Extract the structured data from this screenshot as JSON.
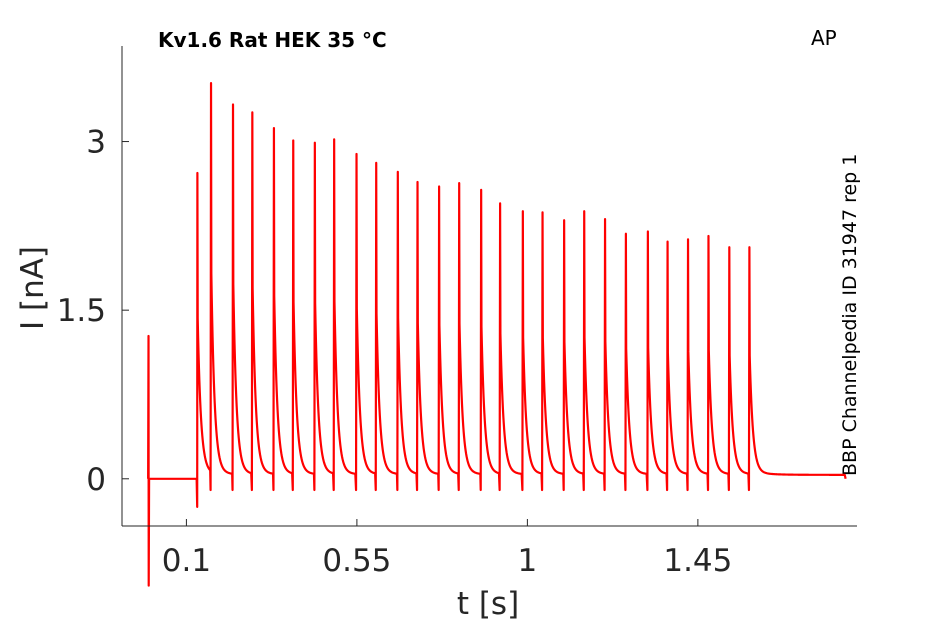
{
  "chart_data": {
    "type": "line",
    "title": "Kv1.6  Rat  HEK  35 °C",
    "protocol_label": "AP",
    "side_label": "BBP Channelpedia ID 31947 rep 1",
    "xlabel": "t [s]",
    "ylabel": "I [nA]",
    "xlim": [
      -0.07,
      1.87
    ],
    "ylim": [
      -0.42,
      3.85
    ],
    "x_ticks": [
      0.1,
      0.55,
      1,
      1.45
    ],
    "x_tick_labels": [
      "0.1",
      "0.55",
      "1",
      "1.45"
    ],
    "y_ticks": [
      0,
      1.5,
      3
    ],
    "y_tick_labels": [
      "0",
      "1.5",
      "3"
    ],
    "grid": false,
    "legend": "none",
    "series": [
      {
        "color": "#ff0000",
        "baseline": 0.0,
        "pre_pulse": {
          "t": 0.0,
          "peak": 1.27,
          "trough": -0.95
        },
        "spike_times": [
          0.129,
          0.165,
          0.223,
          0.274,
          0.331,
          0.382,
          0.439,
          0.49,
          0.549,
          0.601,
          0.658,
          0.71,
          0.767,
          0.82,
          0.878,
          0.928,
          0.988,
          1.04,
          1.097,
          1.15,
          1.205,
          1.26,
          1.318,
          1.37,
          1.424,
          1.478,
          1.533,
          1.586
        ],
        "spike_peaks": [
          2.72,
          3.52,
          3.33,
          3.26,
          3.12,
          3.01,
          2.99,
          3.02,
          2.89,
          2.81,
          2.73,
          2.64,
          2.6,
          2.63,
          2.57,
          2.45,
          2.38,
          2.37,
          2.3,
          2.38,
          2.31,
          2.18,
          2.2,
          2.11,
          2.13,
          2.16,
          2.06,
          2.06
        ],
        "t_end": 1.84
      }
    ]
  }
}
